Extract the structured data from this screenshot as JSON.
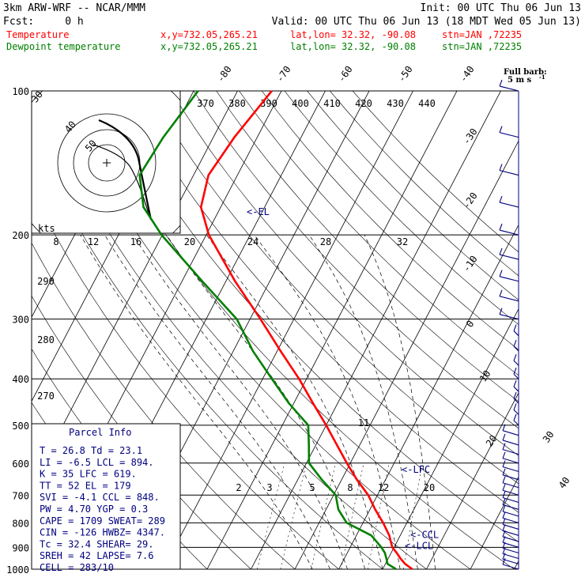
{
  "header": {
    "model": "3km ARW-WRF -- NCAR/MMM",
    "init": "Init: 00 UTC Thu 06 Jun 13",
    "fcst": "Fcst:     0 h",
    "valid": "Valid: 00 UTC Thu 06 Jun 13 (18 MDT Wed 05 Jun 13)",
    "temp_label": "Temperature",
    "dew_label": "Dewpoint temperature",
    "xy": "x,y=732.05,265.21",
    "latlon": "lat,lon= 32.32, -90.08",
    "stn": "stn=JAN ,72235",
    "full_barb": "Full barb:",
    "full_barb_units": "5 m s",
    "full_barb_exp": "-1"
  },
  "colors": {
    "temperature": "#ff0000",
    "dewpoint": "#008000",
    "wind": "#000080",
    "grid": "#000000",
    "panel_text": "#000080"
  },
  "chart_data": {
    "type": "line",
    "diagram": "skew-T log-p",
    "pressure_axis": {
      "levels": [
        100,
        200,
        300,
        400,
        500,
        600,
        700,
        800,
        900,
        1000
      ],
      "labels": [
        "100",
        "200",
        "300",
        "400",
        "500",
        "600",
        "700",
        "800",
        "900",
        "1000"
      ],
      "scale": "log"
    },
    "isotherm_labels": [
      "-80",
      "-70",
      "-60",
      "-50",
      "-40",
      "-30",
      "-20",
      "-10",
      "0",
      "10",
      "20",
      "30",
      "40"
    ],
    "isotherm_values": [
      -80,
      -70,
      -60,
      -50,
      -40,
      -30,
      -20,
      -10,
      0,
      10,
      20,
      30,
      40
    ],
    "theta_labels": [
      "370",
      "380",
      "390",
      "400",
      "410",
      "420",
      "430",
      "440"
    ],
    "theta_left_labels": [
      "290",
      "280",
      "270"
    ],
    "mixing_ratio_labels": [
      "2",
      "3",
      "5",
      "8",
      "12",
      "20"
    ],
    "series": [
      {
        "name": "Temperature",
        "color": "#ff0000",
        "p": [
          1000,
          975,
          950,
          925,
          900,
          850,
          800,
          750,
          700,
          650,
          600,
          550,
          500,
          450,
          400,
          350,
          300,
          250,
          200,
          175,
          150,
          125,
          100
        ],
        "t": [
          26.8,
          24.5,
          22.8,
          21.3,
          19.6,
          17.5,
          14.6,
          11.2,
          7.9,
          3.5,
          -0.8,
          -5.2,
          -10.0,
          -15.6,
          -21.7,
          -29.2,
          -37.6,
          -47.9,
          -59.4,
          -64.5,
          -66.6,
          -65.2,
          -62.2
        ]
      },
      {
        "name": "Dewpoint temperature",
        "color": "#008000",
        "p": [
          1000,
          975,
          950,
          925,
          900,
          850,
          800,
          750,
          700,
          650,
          600,
          550,
          500,
          450,
          400,
          350,
          300,
          250,
          200,
          175,
          150,
          125,
          100
        ],
        "td": [
          23.1,
          20.5,
          19.6,
          18.6,
          17.1,
          13.4,
          6.3,
          2.8,
          0.5,
          -4.5,
          -9.4,
          -11.6,
          -14.1,
          -21.1,
          -27.9,
          -35.5,
          -43.0,
          -55.4,
          -70.2,
          -77.6,
          -82.3,
          -81.4,
          -79.0
        ]
      }
    ],
    "annotations": [
      "<-EL",
      "<-LFC",
      "<-CCL",
      "<-LCL"
    ],
    "annotation_pressures": [
      179,
      619,
      848,
      894
    ],
    "hodograph": {
      "kts_label": "kts",
      "scale_labels": [
        "8",
        "12",
        "16",
        "20",
        "24",
        "28",
        "32"
      ],
      "ring_labels": [
        "30",
        "40",
        "50"
      ]
    },
    "wind_speed_ring_labels": [
      "30",
      "40"
    ]
  },
  "parcel_info": {
    "title": "Parcel Info",
    "rows": [
      "T  =    26.8  Td =  23.1",
      "LI =    -6.5  LCL =  894.",
      "K  =      35  LFC =  619.",
      "TT =      52  EL  =  179",
      "SVI =   -4.1  CCL =  848.",
      "PW =    4.70  YGP =   0.3",
      "CAPE =  1709  SWEAT=  289",
      "CIN =   -126  HWBZ= 4347.",
      "Tc =    32.4  SHEAR=  29.",
      "SREH =    42  LAPSE=  7.6",
      "CELL = 283/10"
    ]
  }
}
